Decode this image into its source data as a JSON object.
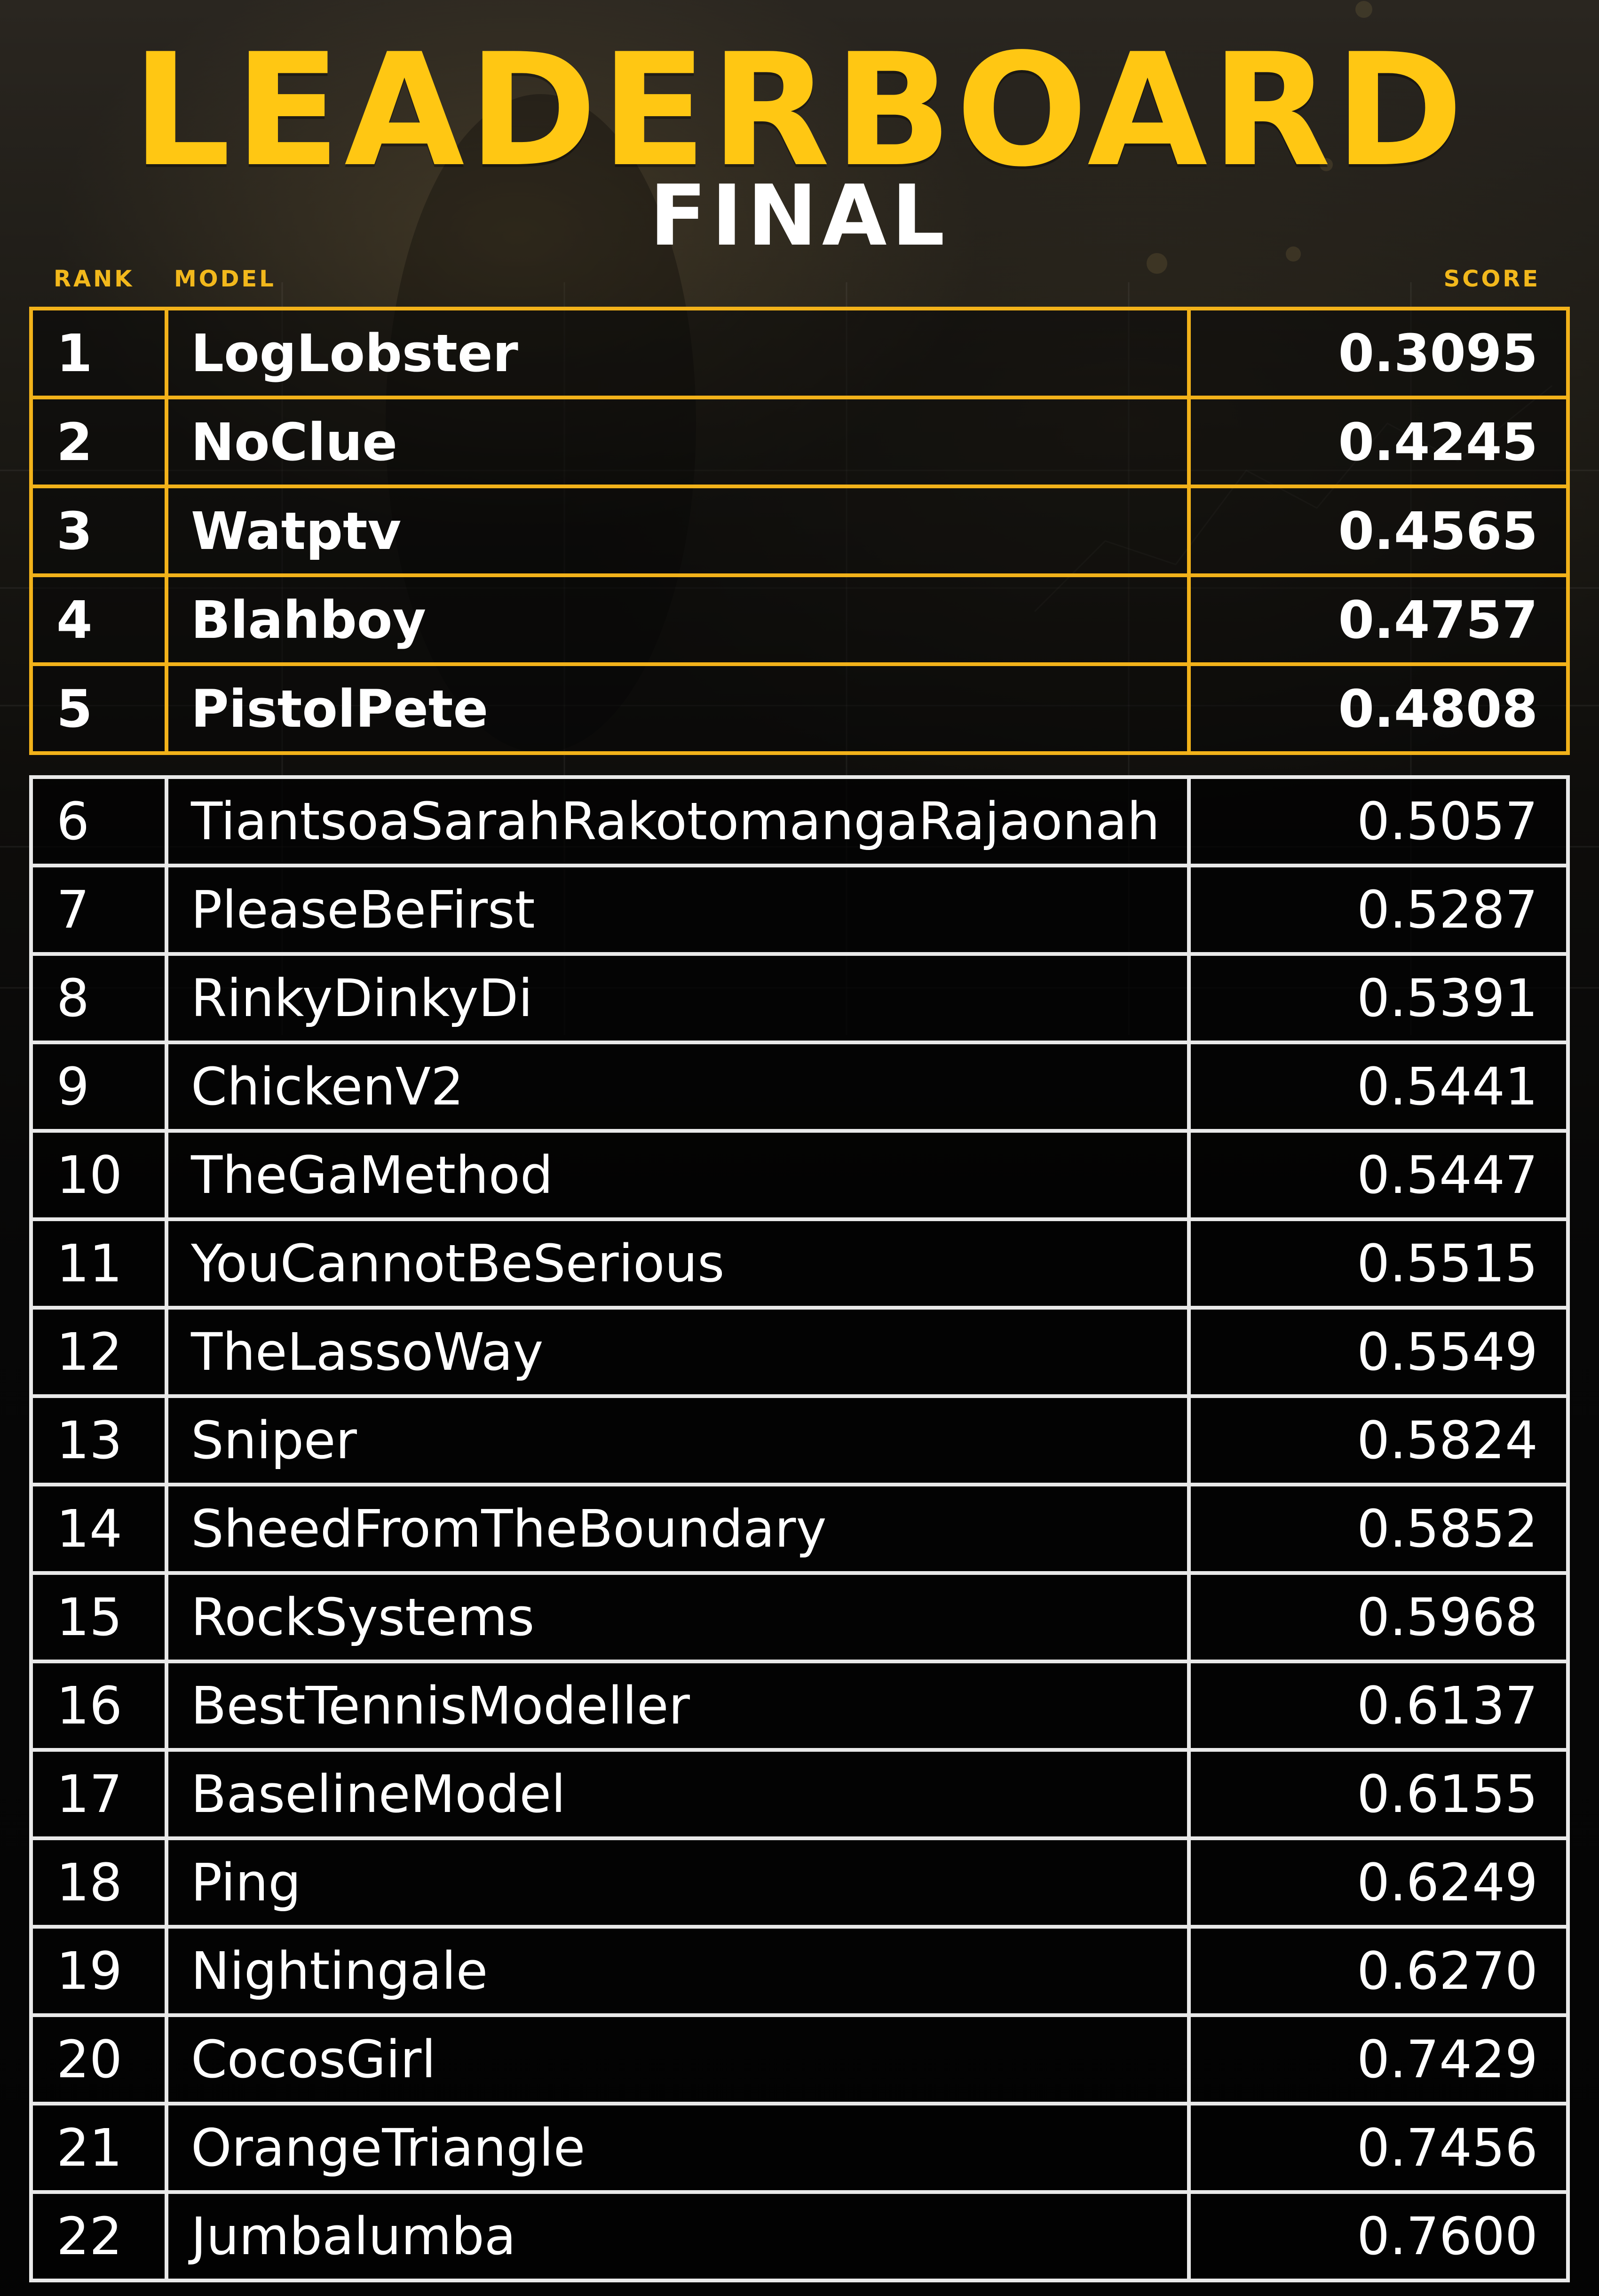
{
  "header": {
    "title": "LEADERBOARD",
    "subtitle": "FINAL"
  },
  "columns": {
    "rank": "RANK",
    "model": "MODEL",
    "score": "SCORE"
  },
  "top_rows": [
    {
      "rank": "1",
      "model": "LogLobster",
      "score": "0.3095"
    },
    {
      "rank": "2",
      "model": "NoClue",
      "score": "0.4245"
    },
    {
      "rank": "3",
      "model": "Watptv",
      "score": "0.4565"
    },
    {
      "rank": "4",
      "model": "Blahboy",
      "score": "0.4757"
    },
    {
      "rank": "5",
      "model": "PistolPete",
      "score": "0.4808"
    }
  ],
  "rows": [
    {
      "rank": "6",
      "model": "TiantsoaSarahRakotomangaRajaonah",
      "score": "0.5057"
    },
    {
      "rank": "7",
      "model": "PleaseBeFirst",
      "score": "0.5287"
    },
    {
      "rank": "8",
      "model": "RinkyDinkyDi",
      "score": "0.5391"
    },
    {
      "rank": "9",
      "model": "ChickenV2",
      "score": "0.5441"
    },
    {
      "rank": "10",
      "model": "TheGaMethod",
      "score": "0.5447"
    },
    {
      "rank": "11",
      "model": "YouCannotBeSerious",
      "score": "0.5515"
    },
    {
      "rank": "12",
      "model": "TheLassoWay",
      "score": "0.5549"
    },
    {
      "rank": "13",
      "model": "Sniper",
      "score": "0.5824"
    },
    {
      "rank": "14",
      "model": "SheedFromTheBoundary",
      "score": "0.5852"
    },
    {
      "rank": "15",
      "model": "RockSystems",
      "score": "0.5968"
    },
    {
      "rank": "16",
      "model": "BestTennisModeller",
      "score": "0.6137"
    },
    {
      "rank": "17",
      "model": "BaselineModel",
      "score": "0.6155"
    },
    {
      "rank": "18",
      "model": "Ping",
      "score": "0.6249"
    },
    {
      "rank": "19",
      "model": "Nightingale",
      "score": "0.6270"
    },
    {
      "rank": "20",
      "model": "CocosGirl",
      "score": "0.7429"
    },
    {
      "rank": "21",
      "model": "OrangeTriangle",
      "score": "0.7456"
    },
    {
      "rank": "22",
      "model": "Jumbalumba",
      "score": "0.7600"
    }
  ],
  "colors": {
    "accent": "#f2b21a",
    "title": "#ffc713",
    "row_border": "#e9e9e9",
    "text": "#ffffff"
  }
}
